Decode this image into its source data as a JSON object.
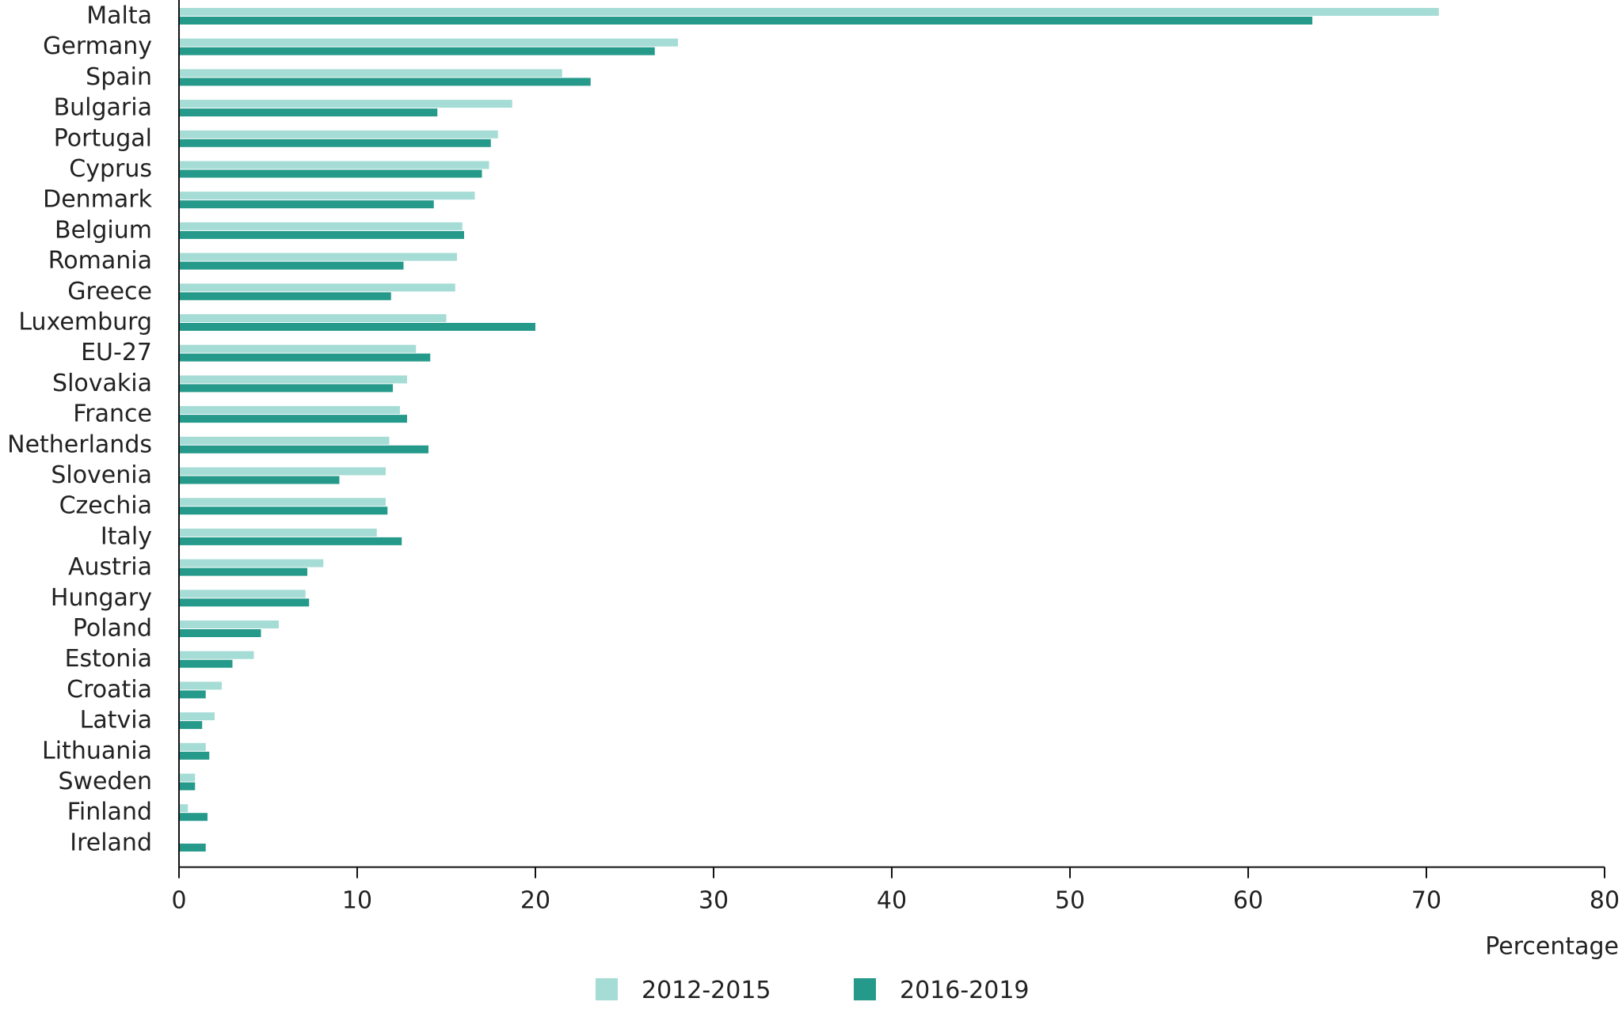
{
  "chart_data": {
    "type": "bar",
    "orientation": "horizontal",
    "title": "",
    "xlabel": "Percentage",
    "ylabel": "",
    "xlim": [
      0,
      80
    ],
    "xticks": [
      0,
      10,
      20,
      30,
      40,
      50,
      60,
      70,
      80
    ],
    "grid": false,
    "legend_position": "bottom-center",
    "categories": [
      "Malta",
      "Germany",
      "Spain",
      "Bulgaria",
      "Portugal",
      "Cyprus",
      "Denmark",
      "Belgium",
      "Romania",
      "Greece",
      "Luxemburg",
      "EU-27",
      "Slovakia",
      "France",
      "Netherlands",
      "Slovenia",
      "Czechia",
      "Italy",
      "Austria",
      "Hungary",
      "Poland",
      "Estonia",
      "Croatia",
      "Latvia",
      "Lithuania",
      "Sweden",
      "Finland",
      "Ireland"
    ],
    "series": [
      {
        "name": "2012-2015",
        "color": "#a6dcd6",
        "values": [
          70.7,
          28.0,
          21.5,
          18.7,
          17.9,
          17.4,
          16.6,
          15.9,
          15.6,
          15.5,
          15.0,
          13.3,
          12.8,
          12.4,
          11.8,
          11.6,
          11.6,
          11.1,
          8.1,
          7.1,
          5.6,
          4.2,
          2.4,
          2.0,
          1.5,
          0.9,
          0.5,
          0.0
        ]
      },
      {
        "name": "2016-2019",
        "color": "#259a8a",
        "values": [
          63.6,
          26.7,
          23.1,
          14.5,
          17.5,
          17.0,
          14.3,
          16.0,
          12.6,
          11.9,
          20.0,
          14.1,
          12.0,
          12.8,
          14.0,
          9.0,
          11.7,
          12.5,
          7.2,
          7.3,
          4.6,
          3.0,
          1.5,
          1.3,
          1.7,
          0.9,
          1.6,
          1.5
        ]
      }
    ]
  }
}
